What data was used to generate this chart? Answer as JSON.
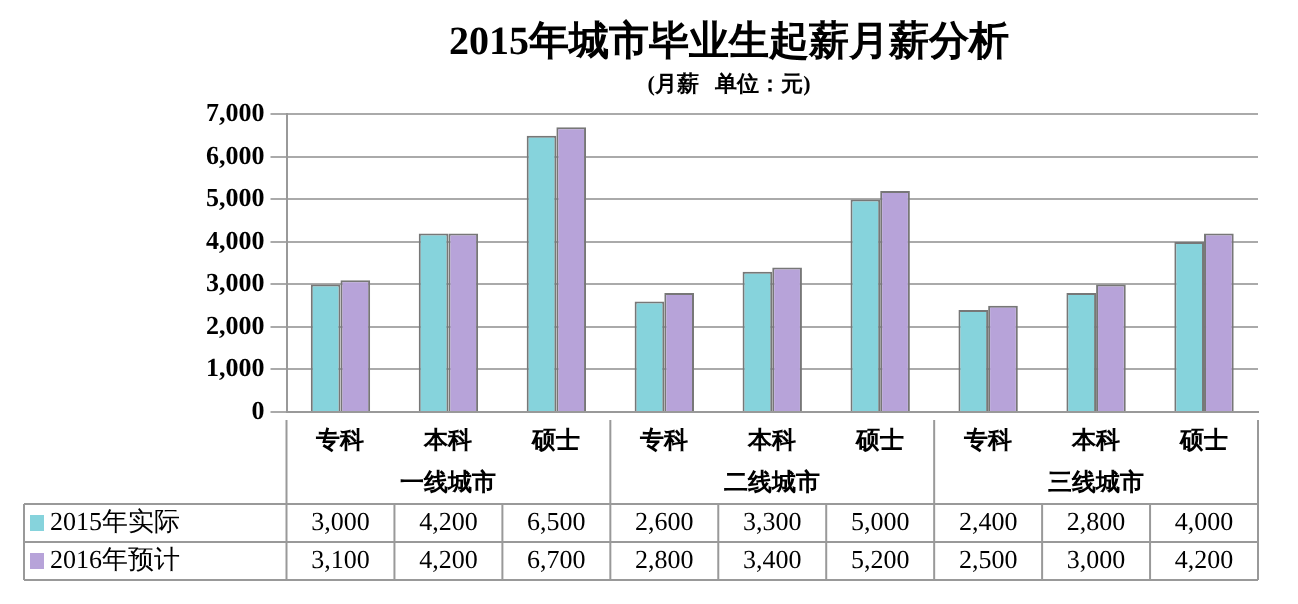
{
  "chart_data": {
    "type": "bar",
    "title": "2015年城市毕业生起薪月薪分析",
    "subtitle": "(月薪   单位：元)",
    "categories": [
      "专科",
      "本科",
      "硕士",
      "专科",
      "本科",
      "硕士",
      "专科",
      "本科",
      "硕士"
    ],
    "annotations": [
      "一线城市",
      "二线城市",
      "三线城市"
    ],
    "series": [
      {
        "name": "2015年实际",
        "color": "#86d3dc",
        "values": [
          3000,
          4200,
          6500,
          2600,
          3300,
          5000,
          2400,
          2800,
          4000
        ],
        "value_labels": [
          "3,000",
          "4,200",
          "6,500",
          "2,600",
          "3,300",
          "5,000",
          "2,400",
          "2,800",
          "4,000"
        ]
      },
      {
        "name": "2016年预计",
        "color": "#b7a3d9",
        "values": [
          3100,
          4200,
          6700,
          2800,
          3400,
          5200,
          2500,
          3000,
          4200
        ],
        "value_labels": [
          "3,100",
          "4,200",
          "6,700",
          "2,800",
          "3,400",
          "5,200",
          "2,500",
          "3,000",
          "4,200"
        ]
      }
    ],
    "ylim": [
      0,
      7000
    ],
    "yticks": [
      {
        "value": 0,
        "label": "0"
      },
      {
        "value": 1000,
        "label": "1,000"
      },
      {
        "value": 2000,
        "label": "2,000"
      },
      {
        "value": 3000,
        "label": "3,000"
      },
      {
        "value": 4000,
        "label": "4,000"
      },
      {
        "value": 5000,
        "label": "5,000"
      },
      {
        "value": 6000,
        "label": "6,000"
      },
      {
        "value": 7000,
        "label": "7,000"
      }
    ],
    "grid": "y",
    "legend": "bottom"
  }
}
